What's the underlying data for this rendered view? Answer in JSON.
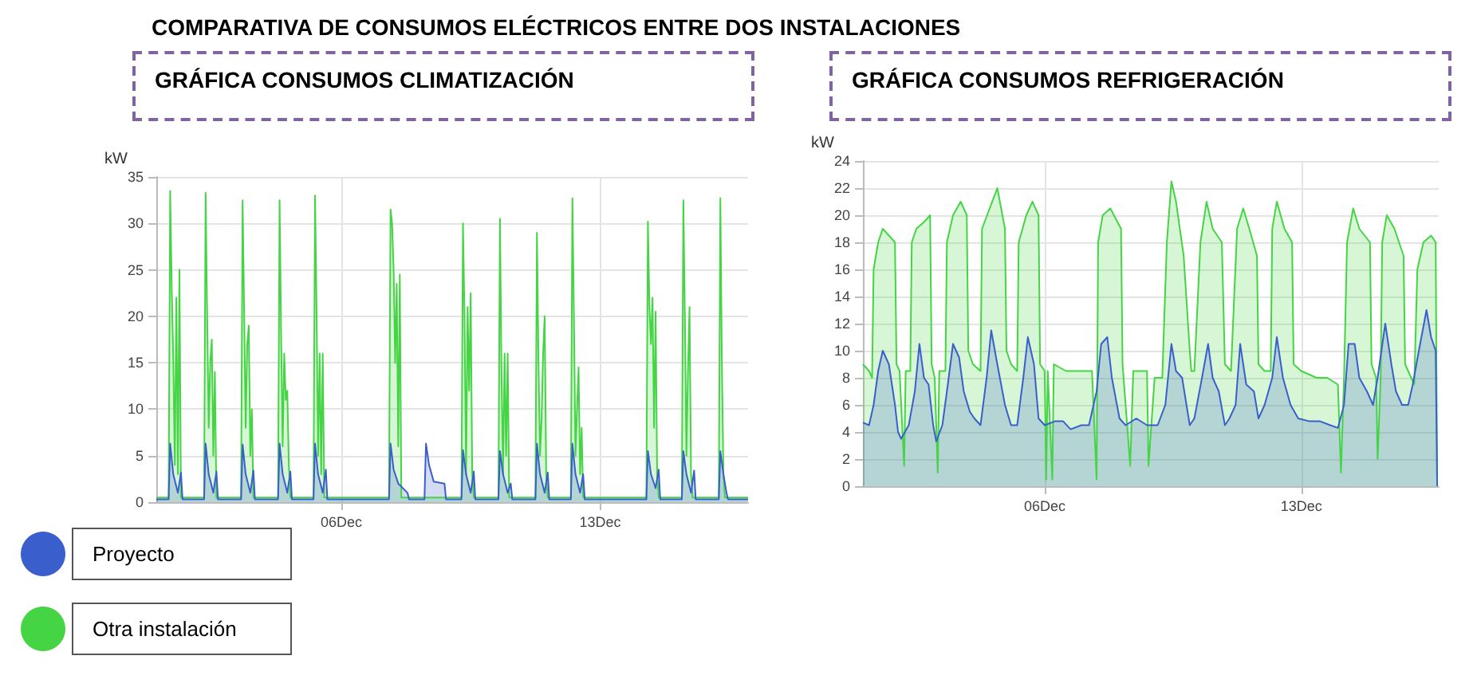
{
  "chart_data": [
    {
      "type": "area",
      "title": "COMPARATIVA DE CONSUMOS ELÉCTRICOS ENTRE DOS INSTALACIONES",
      "subtitle": "GRÁFICA CONSUMOS CLIMATIZACIÓN",
      "ylabel": "kW",
      "xlim": [
        "--12-01T00:00",
        "--12-17T00:00"
      ],
      "xticks": [
        {
          "value": "--12-06",
          "label": "06Dec"
        },
        {
          "value": "--12-13",
          "label": "13Dec"
        }
      ],
      "ylim": [
        0,
        35
      ],
      "yticks": [
        0,
        5,
        10,
        15,
        20,
        25,
        30,
        35
      ],
      "grid": true,
      "legend": "bottom left",
      "marker": "none",
      "series": [
        {
          "name": "Otra instalación",
          "color": "#44d444",
          "x": [
            "--12-01T00:00",
            "--12-01T08:00",
            "--12-01T09:00",
            "--12-01T10:00",
            "--12-01T11:00",
            "--12-01T12:00",
            "--12-01T13:00",
            "--12-01T14:00",
            "--12-01T15:00",
            "--12-01T16:00",
            "--12-02T07:00",
            "--12-02T08:00",
            "--12-02T09:00",
            "--12-02T10:00",
            "--12-02T11:00",
            "--12-02T12:00",
            "--12-02T13:00",
            "--12-02T14:00",
            "--12-02T15:00",
            "--12-03T07:00",
            "--12-03T08:00",
            "--12-03T09:00",
            "--12-03T10:00",
            "--12-03T11:00",
            "--12-03T12:00",
            "--12-03T13:00",
            "--12-03T14:00",
            "--12-03T15:00",
            "--12-04T07:00",
            "--12-04T08:00",
            "--12-04T09:00",
            "--12-04T10:00",
            "--12-04T11:00",
            "--12-04T12:00",
            "--12-04T13:00",
            "--12-04T14:00",
            "--12-04T15:00",
            "--12-05T06:00",
            "--12-05T07:00",
            "--12-05T08:00",
            "--12-05T09:00",
            "--12-05T10:00",
            "--12-05T11:00",
            "--12-05T12:00",
            "--12-05T13:00",
            "--12-07T07:00",
            "--12-07T08:00",
            "--12-07T09:00",
            "--12-07T10:00",
            "--12-07T11:00",
            "--12-07T12:00",
            "--12-07T13:00",
            "--12-07T14:00",
            "--12-07T15:00",
            "--12-09T06:00",
            "--12-09T07:00",
            "--12-09T08:00",
            "--12-09T09:00",
            "--12-09T10:00",
            "--12-09T11:00",
            "--12-09T12:00",
            "--12-09T13:00",
            "--12-09T14:00",
            "--12-10T06:00",
            "--12-10T07:00",
            "--12-10T08:00",
            "--12-10T09:00",
            "--12-10T10:00",
            "--12-10T11:00",
            "--12-10T12:00",
            "--12-10T13:00",
            "--12-11T06:00",
            "--12-11T07:00",
            "--12-11T08:00",
            "--12-11T09:00",
            "--12-11T10:00",
            "--12-11T11:00",
            "--12-11T12:00",
            "--12-11T13:00",
            "--12-11T14:00",
            "--12-12T05:00",
            "--12-12T06:00",
            "--12-12T07:00",
            "--12-12T08:00",
            "--12-12T09:00",
            "--12-12T10:00",
            "--12-12T11:00",
            "--12-12T12:00",
            "--12-12T13:00",
            "--12-14T06:00",
            "--12-14T07:00",
            "--12-14T08:00",
            "--12-14T09:00",
            "--12-14T10:00",
            "--12-14T11:00",
            "--12-14T12:00",
            "--12-14T13:00",
            "--12-14T14:00",
            "--12-15T05:00",
            "--12-15T06:00",
            "--12-15T07:00",
            "--12-15T08:00",
            "--12-15T09:00",
            "--12-15T10:00",
            "--12-15T11:00",
            "--12-15T12:00",
            "--12-16T05:00",
            "--12-16T06:00",
            "--12-16T07:00",
            "--12-16T08:00",
            "--12-16T09:00",
            "--12-17T00:00"
          ],
          "values": [
            0.5,
            0.5,
            33.5,
            23,
            15.5,
            4,
            22,
            3,
            25,
            0.5,
            0.5,
            33.3,
            20,
            8,
            15,
            17.5,
            5,
            14,
            0.5,
            0.5,
            32.5,
            20.5,
            8,
            17,
            19,
            5,
            10,
            0.5,
            0.5,
            32.5,
            18,
            6,
            16,
            11,
            12,
            4,
            0.5,
            0.5,
            33,
            20.5,
            5,
            16,
            3,
            16,
            0.5,
            0.5,
            31.5,
            30,
            25,
            15,
            23.5,
            6,
            24.5,
            0.5,
            0.5,
            30,
            20,
            3,
            21,
            12,
            22.5,
            3,
            0.5,
            0.5,
            30.5,
            14,
            3,
            16,
            5,
            16,
            0.5,
            0.5,
            29,
            15,
            5,
            9,
            16,
            20,
            3,
            0.5,
            0.5,
            32.7,
            20,
            5,
            10,
            14.5,
            3,
            8,
            0.5,
            0.5,
            30.2,
            21,
            17,
            22,
            8,
            20.5,
            3,
            0.5,
            0.5,
            32.5,
            20,
            5,
            14,
            21,
            3,
            0.5,
            0.5,
            32.7,
            15,
            3,
            0.5,
            0.5
          ]
        },
        {
          "name": "Proyecto",
          "color": "#3a5fcd",
          "x": [
            "--12-01T00:00",
            "--12-01T08:00",
            "--12-01T09:00",
            "--12-01T11:00",
            "--12-01T14:00",
            "--12-01T16:00",
            "--12-01T17:00",
            "--12-02T07:00",
            "--12-02T08:00",
            "--12-02T10:00",
            "--12-02T13:00",
            "--12-02T15:00",
            "--12-02T16:00",
            "--12-03T07:00",
            "--12-03T08:00",
            "--12-03T10:00",
            "--12-03T13:00",
            "--12-03T15:00",
            "--12-03T16:00",
            "--12-04T07:00",
            "--12-04T08:00",
            "--12-04T10:00",
            "--12-04T13:00",
            "--12-04T15:00",
            "--12-04T16:00",
            "--12-05T06:00",
            "--12-05T07:00",
            "--12-05T09:00",
            "--12-05T12:00",
            "--12-05T14:00",
            "--12-05T15:00",
            "--12-07T07:00",
            "--12-07T08:00",
            "--12-07T10:00",
            "--12-07T13:00",
            "--12-07T19:00",
            "--12-07T20:00",
            "--12-08T06:00",
            "--12-08T07:00",
            "--12-08T09:00",
            "--12-08T12:00",
            "--12-08T19:00",
            "--12-08T20:00",
            "--12-09T06:00",
            "--12-09T07:00",
            "--12-09T09:00",
            "--12-09T12:00",
            "--12-09T14:00",
            "--12-09T15:00",
            "--12-10T06:00",
            "--12-10T07:00",
            "--12-10T09:00",
            "--12-10T12:00",
            "--12-10T14:00",
            "--12-10T15:00",
            "--12-11T06:00",
            "--12-11T07:00",
            "--12-11T09:00",
            "--12-11T12:00",
            "--12-11T14:00",
            "--12-11T15:00",
            "--12-12T05:00",
            "--12-12T06:00",
            "--12-12T08:00",
            "--12-12T11:00",
            "--12-12T13:00",
            "--12-12T14:00",
            "--12-14T06:00",
            "--12-14T07:00",
            "--12-14T09:00",
            "--12-14T12:00",
            "--12-14T14:00",
            "--12-14T15:00",
            "--12-15T05:00",
            "--12-15T06:00",
            "--12-15T08:00",
            "--12-15T11:00",
            "--12-15T13:00",
            "--12-15T14:00",
            "--12-16T05:00",
            "--12-16T06:00",
            "--12-16T08:00",
            "--12-16T10:00",
            "--12-16T11:00",
            "--12-17T00:00"
          ],
          "values": [
            0.3,
            0.3,
            6.3,
            3,
            1,
            3.2,
            0.3,
            0.3,
            6.3,
            3,
            1,
            3.3,
            0.3,
            0.3,
            6.2,
            3,
            1,
            3.4,
            0.3,
            0.3,
            6.3,
            3,
            1,
            3.3,
            0.3,
            0.3,
            6.3,
            3,
            1,
            3.5,
            0.3,
            0.3,
            6.3,
            3.5,
            2,
            1,
            0.3,
            0.3,
            6.3,
            4,
            2.2,
            2,
            0.3,
            0.3,
            5.6,
            3,
            1,
            3.3,
            0.3,
            0.3,
            5.5,
            3,
            1,
            2,
            0.3,
            0.3,
            6.3,
            3,
            1,
            3.2,
            0.3,
            0.3,
            6.3,
            3,
            1,
            3,
            0.3,
            0.3,
            5.5,
            3,
            1.5,
            3.5,
            0.3,
            0.3,
            5.5,
            3,
            1,
            3.4,
            0.3,
            0.3,
            5.5,
            3,
            1,
            0.3,
            0.3
          ]
        }
      ]
    },
    {
      "type": "area",
      "subtitle": "GRÁFICA CONSUMOS REFRIGERACIÓN",
      "ylabel": "kW",
      "xlim": [
        "--12-01T01:00",
        "--12-16T18:00"
      ],
      "xticks": [
        {
          "value": "--12-06",
          "label": "06Dec"
        },
        {
          "value": "--12-13",
          "label": "13Dec"
        }
      ],
      "ylim": [
        0,
        24
      ],
      "yticks": [
        0,
        2,
        4,
        6,
        8,
        10,
        12,
        14,
        16,
        18,
        20,
        22,
        24
      ],
      "grid": true,
      "marker": "none",
      "series": [
        {
          "color": "#44d444",
          "x": [
            "--12-01T01:00",
            "--12-01T05:00",
            "--12-01T07:00",
            "--12-01T08:00",
            "--12-01T11:00",
            "--12-01T14:00",
            "--12-01T18:00",
            "--12-01T22:00",
            "--12-01T23:00",
            "--12-02T01:00",
            "--12-02T04:00",
            "--12-02T05:00",
            "--12-02T08:00",
            "--12-02T09:00",
            "--12-02T12:00",
            "--12-02T17:00",
            "--12-02T21:00",
            "--12-02T22:00",
            "--12-03T00:00",
            "--12-03T02:00",
            "--12-03T03:00",
            "--12-03T07:00",
            "--12-03T08:00",
            "--12-03T12:00",
            "--12-03T17:00",
            "--12-03T21:00",
            "--12-03T22:00",
            "--12-04T01:00",
            "--12-04T06:00",
            "--12-04T07:00",
            "--12-04T12:00",
            "--12-04T17:00",
            "--12-04T22:00",
            "--12-04T23:00",
            "--12-05T02:00",
            "--12-05T06:00",
            "--12-05T07:00",
            "--12-05T12:00",
            "--12-05T16:00",
            "--12-05T20:00",
            "--12-05T21:00",
            "--12-06T00:00",
            "--12-06T01:00",
            "--12-06T02:00",
            "--12-06T05:00",
            "--12-06T06:00",
            "--12-06T14:00",
            "--12-07T00:00",
            "--12-07T07:00",
            "--12-07T10:00",
            "--12-07T11:00",
            "--12-07T14:00",
            "--12-07T19:00",
            "--12-08T02:00",
            "--12-08T03:00",
            "--12-08T08:00",
            "--12-08T10:00",
            "--12-08T19:00",
            "--12-08T20:00",
            "--12-09T00:00",
            "--12-09T05:00",
            "--12-09T08:00",
            "--12-09T11:00",
            "--12-09T14:00",
            "--12-09T19:00",
            "--12-09T23:00",
            "--12-10T00:00",
            "--12-10T02:00",
            "--12-10T06:00",
            "--12-10T10:00",
            "--12-10T14:00",
            "--12-10T20:00",
            "--12-10T22:00",
            "--12-11T02:00",
            "--12-11T06:00",
            "--12-11T10:00",
            "--12-11T14:00",
            "--12-11T19:00",
            "--12-11T20:00",
            "--12-12T00:00",
            "--12-12T04:00",
            "--12-12T05:00",
            "--12-12T08:00",
            "--12-12T13:00",
            "--12-12T18:00",
            "--12-12T19:00",
            "--12-13T00:00",
            "--12-13T10:00",
            "--12-13T17:00",
            "--12-14T00:00",
            "--12-14T02:00",
            "--12-14T04:00",
            "--12-14T06:00",
            "--12-14T10:00",
            "--12-14T14:00",
            "--12-14T21:00",
            "--12-14T22:00",
            "--12-15T01:00",
            "--12-15T02:00",
            "--12-15T04:00",
            "--12-15T05:00",
            "--12-15T08:00",
            "--12-15T13:00",
            "--12-15T19:00",
            "--12-15T20:00",
            "--12-16T00:00",
            "--12-16T02:00",
            "--12-16T04:00",
            "--12-16T08:00",
            "--12-16T13:00",
            "--12-16T16:00",
            "--12-16T17:00"
          ],
          "values": [
            9,
            8.5,
            8,
            16,
            18,
            19,
            18.5,
            18,
            9,
            8.5,
            1.5,
            8.5,
            8.5,
            18,
            19,
            19.5,
            20,
            9,
            8,
            1,
            8.5,
            8.5,
            18,
            20,
            21,
            20,
            10,
            9,
            8.5,
            19,
            20.5,
            22,
            19,
            10,
            9,
            8.5,
            18,
            20,
            21,
            20,
            9,
            8.5,
            0.5,
            8.5,
            0.5,
            9,
            8.5,
            8.5,
            8.5,
            0.5,
            18,
            20,
            20.5,
            19,
            9,
            1.5,
            8.5,
            8.5,
            1.5,
            8,
            8,
            18,
            22.5,
            21,
            17,
            10,
            8.5,
            8.5,
            18,
            21,
            19,
            18,
            9,
            8.5,
            19,
            20.5,
            19,
            17,
            9,
            8.5,
            8.5,
            19,
            21,
            19,
            18,
            9,
            8.5,
            8,
            8,
            7.5,
            1,
            8,
            18,
            20.5,
            19,
            18,
            9,
            8,
            2,
            8,
            18,
            20,
            19,
            17,
            9,
            8,
            7.5,
            16,
            18,
            18.5,
            18,
            0
          ]
        },
        {
          "color": "#3a5fcd",
          "x": [
            "--12-01T01:00",
            "--12-01T05:00",
            "--12-01T08:00",
            "--12-01T11:00",
            "--12-01T14:00",
            "--12-01T18:00",
            "--12-01T22:00",
            "--12-02T00:00",
            "--12-02T02:00",
            "--12-02T07:00",
            "--12-02T11:00",
            "--12-02T14:00",
            "--12-02T17:00",
            "--12-02T20:00",
            "--12-02T23:00",
            "--12-03T01:00",
            "--12-03T05:00",
            "--12-03T08:00",
            "--12-03T12:00",
            "--12-03T16:00",
            "--12-03T19:00",
            "--12-03T23:00",
            "--12-04T02:00",
            "--12-04T06:00",
            "--12-04T10:00",
            "--12-04T13:00",
            "--12-04T17:00",
            "--12-04T22:00",
            "--12-05T02:00",
            "--12-05T06:00",
            "--12-05T10:00",
            "--12-05T13:00",
            "--12-05T17:00",
            "--12-05T20:00",
            "--12-06T00:00",
            "--12-06T07:00",
            "--12-06T12:00",
            "--12-06T17:00",
            "--12-07T00:00",
            "--12-07T05:00",
            "--12-07T10:00",
            "--12-07T13:00",
            "--12-07T17:00",
            "--12-07T20:00",
            "--12-08T01:00",
            "--12-08T05:00",
            "--12-08T12:00",
            "--12-08T19:00",
            "--12-09T02:00",
            "--12-09T07:00",
            "--12-09T11:00",
            "--12-09T14:00",
            "--12-09T18:00",
            "--12-09T23:00",
            "--12-10T02:00",
            "--12-10T07:00",
            "--12-10T11:00",
            "--12-10T14:00",
            "--12-10T18:00",
            "--12-10T22:00",
            "--12-11T01:00",
            "--12-11T05:00",
            "--12-11T08:00",
            "--12-11T12:00",
            "--12-11T17:00",
            "--12-11T20:00",
            "--12-12T00:00",
            "--12-12T05:00",
            "--12-12T08:00",
            "--12-12T12:00",
            "--12-12T17:00",
            "--12-12T22:00",
            "--12-13T05:00",
            "--12-13T12:00",
            "--12-13T19:00",
            "--12-14T00:00",
            "--12-14T04:00",
            "--12-14T07:00",
            "--12-14T11:00",
            "--12-14T14:00",
            "--12-14T19:00",
            "--12-14T23:00",
            "--12-15T02:00",
            "--12-15T07:00",
            "--12-15T11:00",
            "--12-15T14:00",
            "--12-15T18:00",
            "--12-15T22:00",
            "--12-16T01:00",
            "--12-16T05:00",
            "--12-16T10:00",
            "--12-16T13:00",
            "--12-16T16:00",
            "--12-16T17:00"
          ],
          "values": [
            4.7,
            4.5,
            6,
            8.5,
            10,
            9,
            6,
            4,
            3.5,
            4.5,
            7,
            10.5,
            8,
            7.5,
            4.5,
            3.3,
            4.5,
            7,
            10.5,
            9.5,
            7,
            5.5,
            5,
            4.5,
            8,
            11.5,
            9,
            6,
            4.5,
            4.5,
            8,
            11,
            9,
            5,
            4.5,
            4.8,
            4.8,
            4.2,
            4.5,
            4.5,
            7,
            10.5,
            11,
            8,
            5,
            4.5,
            5,
            4.5,
            4.5,
            6,
            10.5,
            8.5,
            8,
            4.5,
            5,
            8,
            10.5,
            8,
            7,
            4.5,
            5,
            6,
            10.5,
            7.5,
            7,
            5,
            6,
            8,
            11,
            8,
            6,
            5,
            4.8,
            4.8,
            4.5,
            4.3,
            6,
            10.5,
            10.5,
            8,
            7,
            6,
            8,
            12,
            9,
            7,
            6,
            6,
            7.5,
            10,
            13,
            11,
            10,
            0
          ]
        }
      ]
    }
  ]
}
